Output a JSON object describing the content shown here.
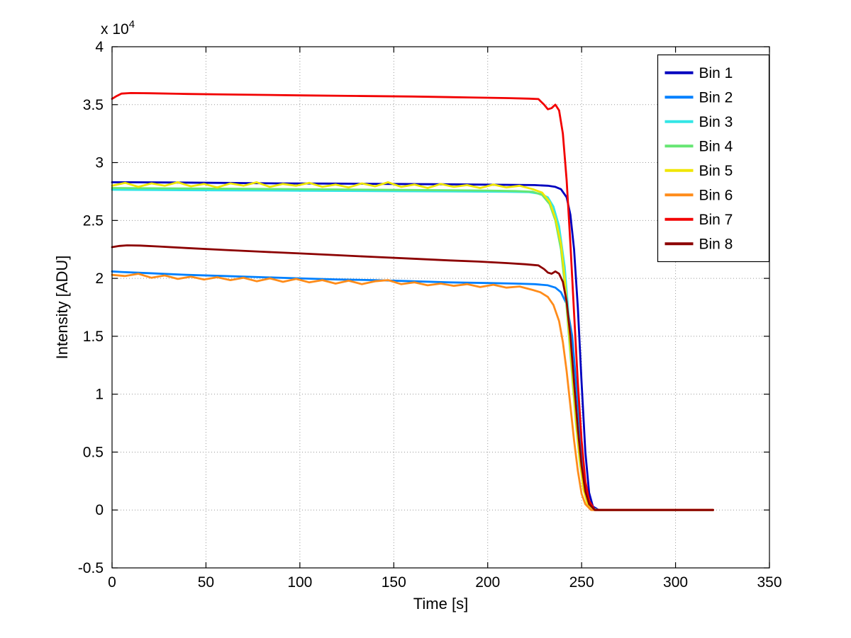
{
  "figure": {
    "background": "#ffffff"
  },
  "chart_data": {
    "type": "line",
    "title": "",
    "xlabel": "Time [s]",
    "ylabel": "Intensity [ADU]",
    "y_multiplier_label": "x 10^4",
    "xlim": [
      0,
      350
    ],
    "ylim": [
      -0.5,
      4
    ],
    "xticks": [
      0,
      50,
      100,
      150,
      200,
      250,
      300,
      350
    ],
    "yticks": [
      -0.5,
      0,
      0.5,
      1,
      1.5,
      2,
      2.5,
      3,
      3.5,
      4
    ],
    "grid": "dotted",
    "grid_color": "#999999",
    "axis_color": "#000000",
    "legend_position": "top-right",
    "legend_labels": [
      "Bin 1",
      "Bin 2",
      "Bin 3",
      "Bin 4",
      "Bin 5",
      "Bin 6",
      "Bin 7",
      "Bin 8"
    ],
    "series": [
      {
        "name": "Bin 1",
        "color": "#0000BF",
        "points": [
          [
            0,
            2.83
          ],
          [
            10,
            2.83
          ],
          [
            30,
            2.828
          ],
          [
            60,
            2.824
          ],
          [
            90,
            2.82
          ],
          [
            120,
            2.818
          ],
          [
            150,
            2.815
          ],
          [
            180,
            2.812
          ],
          [
            210,
            2.808
          ],
          [
            225,
            2.805
          ],
          [
            232,
            2.8
          ],
          [
            236,
            2.79
          ],
          [
            239,
            2.77
          ],
          [
            242,
            2.7
          ],
          [
            244,
            2.55
          ],
          [
            246,
            2.25
          ],
          [
            248,
            1.75
          ],
          [
            250,
            1.1
          ],
          [
            252,
            0.5
          ],
          [
            254,
            0.15
          ],
          [
            256,
            0.03
          ],
          [
            259,
            0
          ],
          [
            320,
            0
          ]
        ]
      },
      {
        "name": "Bin 2",
        "color": "#0080FF",
        "points": [
          [
            0,
            2.06
          ],
          [
            5,
            2.055
          ],
          [
            20,
            2.045
          ],
          [
            40,
            2.03
          ],
          [
            60,
            2.02
          ],
          [
            80,
            2.01
          ],
          [
            100,
            2.0
          ],
          [
            120,
            1.99
          ],
          [
            140,
            1.985
          ],
          [
            160,
            1.975
          ],
          [
            180,
            1.965
          ],
          [
            200,
            1.96
          ],
          [
            215,
            1.955
          ],
          [
            225,
            1.95
          ],
          [
            232,
            1.94
          ],
          [
            236,
            1.92
          ],
          [
            239,
            1.88
          ],
          [
            242,
            1.78
          ],
          [
            245,
            1.5
          ],
          [
            247,
            1.1
          ],
          [
            249,
            0.7
          ],
          [
            251,
            0.35
          ],
          [
            253,
            0.12
          ],
          [
            255,
            0.03
          ],
          [
            258,
            0
          ],
          [
            320,
            0
          ]
        ]
      },
      {
        "name": "Bin 3",
        "color": "#33E6E6",
        "points": [
          [
            0,
            2.765
          ],
          [
            30,
            2.762
          ],
          [
            60,
            2.76
          ],
          [
            100,
            2.757
          ],
          [
            140,
            2.754
          ],
          [
            180,
            2.75
          ],
          [
            210,
            2.747
          ],
          [
            222,
            2.744
          ],
          [
            228,
            2.73
          ],
          [
            232,
            2.7
          ],
          [
            235,
            2.62
          ],
          [
            238,
            2.45
          ],
          [
            241,
            2.1
          ],
          [
            243,
            1.7
          ],
          [
            245,
            1.25
          ],
          [
            247,
            0.8
          ],
          [
            249,
            0.45
          ],
          [
            251,
            0.2
          ],
          [
            253,
            0.07
          ],
          [
            256,
            0
          ],
          [
            320,
            0
          ]
        ]
      },
      {
        "name": "Bin 4",
        "color": "#66E673",
        "points": [
          [
            0,
            2.78
          ],
          [
            40,
            2.776
          ],
          [
            80,
            2.772
          ],
          [
            120,
            2.768
          ],
          [
            160,
            2.763
          ],
          [
            200,
            2.758
          ],
          [
            215,
            2.754
          ],
          [
            224,
            2.748
          ],
          [
            229,
            2.72
          ],
          [
            233,
            2.64
          ],
          [
            236,
            2.5
          ],
          [
            239,
            2.25
          ],
          [
            241,
            1.95
          ],
          [
            243,
            1.55
          ],
          [
            245,
            1.15
          ],
          [
            247,
            0.75
          ],
          [
            249,
            0.42
          ],
          [
            251,
            0.18
          ],
          [
            253,
            0.06
          ],
          [
            256,
            0.01
          ],
          [
            259,
            0
          ],
          [
            320,
            0
          ]
        ]
      },
      {
        "name": "Bin 5",
        "color": "#F0E600",
        "points": [
          [
            0,
            2.8
          ],
          [
            7,
            2.825
          ],
          [
            14,
            2.79
          ],
          [
            21,
            2.82
          ],
          [
            28,
            2.8
          ],
          [
            35,
            2.83
          ],
          [
            42,
            2.795
          ],
          [
            49,
            2.815
          ],
          [
            56,
            2.785
          ],
          [
            63,
            2.82
          ],
          [
            70,
            2.8
          ],
          [
            77,
            2.83
          ],
          [
            84,
            2.79
          ],
          [
            91,
            2.815
          ],
          [
            98,
            2.8
          ],
          [
            105,
            2.825
          ],
          [
            112,
            2.79
          ],
          [
            119,
            2.81
          ],
          [
            126,
            2.785
          ],
          [
            133,
            2.82
          ],
          [
            140,
            2.795
          ],
          [
            147,
            2.83
          ],
          [
            154,
            2.79
          ],
          [
            161,
            2.81
          ],
          [
            168,
            2.78
          ],
          [
            175,
            2.815
          ],
          [
            182,
            2.79
          ],
          [
            189,
            2.805
          ],
          [
            196,
            2.78
          ],
          [
            203,
            2.81
          ],
          [
            210,
            2.785
          ],
          [
            217,
            2.8
          ],
          [
            224,
            2.77
          ],
          [
            229,
            2.74
          ],
          [
            233,
            2.66
          ],
          [
            236,
            2.52
          ],
          [
            239,
            2.3
          ],
          [
            241,
            2.0
          ],
          [
            243,
            1.6
          ],
          [
            245,
            1.2
          ],
          [
            247,
            0.78
          ],
          [
            249,
            0.44
          ],
          [
            251,
            0.18
          ],
          [
            253,
            0.06
          ],
          [
            256,
            0
          ],
          [
            320,
            0
          ]
        ]
      },
      {
        "name": "Bin 6",
        "color": "#FF8C1A",
        "points": [
          [
            0,
            2.03
          ],
          [
            7,
            2.02
          ],
          [
            14,
            2.04
          ],
          [
            21,
            2.005
          ],
          [
            28,
            2.025
          ],
          [
            35,
            1.995
          ],
          [
            42,
            2.015
          ],
          [
            49,
            1.99
          ],
          [
            56,
            2.01
          ],
          [
            63,
            1.985
          ],
          [
            70,
            2.005
          ],
          [
            77,
            1.975
          ],
          [
            84,
            2.0
          ],
          [
            91,
            1.97
          ],
          [
            98,
            1.995
          ],
          [
            105,
            1.965
          ],
          [
            112,
            1.985
          ],
          [
            119,
            1.955
          ],
          [
            126,
            1.98
          ],
          [
            133,
            1.95
          ],
          [
            140,
            1.975
          ],
          [
            147,
            1.985
          ],
          [
            154,
            1.95
          ],
          [
            161,
            1.965
          ],
          [
            168,
            1.94
          ],
          [
            175,
            1.955
          ],
          [
            182,
            1.935
          ],
          [
            189,
            1.95
          ],
          [
            196,
            1.925
          ],
          [
            203,
            1.945
          ],
          [
            210,
            1.92
          ],
          [
            217,
            1.93
          ],
          [
            224,
            1.9
          ],
          [
            228,
            1.88
          ],
          [
            232,
            1.84
          ],
          [
            235,
            1.77
          ],
          [
            238,
            1.63
          ],
          [
            240,
            1.45
          ],
          [
            242,
            1.2
          ],
          [
            244,
            0.9
          ],
          [
            246,
            0.6
          ],
          [
            248,
            0.34
          ],
          [
            250,
            0.14
          ],
          [
            252,
            0.05
          ],
          [
            255,
            0
          ],
          [
            320,
            0
          ]
        ]
      },
      {
        "name": "Bin 7",
        "color": "#F20000",
        "points": [
          [
            0,
            3.55
          ],
          [
            2,
            3.57
          ],
          [
            5,
            3.595
          ],
          [
            10,
            3.6
          ],
          [
            20,
            3.598
          ],
          [
            40,
            3.592
          ],
          [
            60,
            3.588
          ],
          [
            80,
            3.584
          ],
          [
            100,
            3.58
          ],
          [
            130,
            3.575
          ],
          [
            160,
            3.57
          ],
          [
            190,
            3.562
          ],
          [
            210,
            3.557
          ],
          [
            222,
            3.552
          ],
          [
            227,
            3.548
          ],
          [
            230,
            3.5
          ],
          [
            232,
            3.46
          ],
          [
            234,
            3.47
          ],
          [
            236,
            3.5
          ],
          [
            238,
            3.45
          ],
          [
            240,
            3.25
          ],
          [
            242,
            2.85
          ],
          [
            244,
            2.3
          ],
          [
            246,
            1.7
          ],
          [
            248,
            1.1
          ],
          [
            250,
            0.6
          ],
          [
            252,
            0.25
          ],
          [
            254,
            0.08
          ],
          [
            257,
            0
          ],
          [
            320,
            0
          ]
        ]
      },
      {
        "name": "Bin 8",
        "color": "#8C0000",
        "points": [
          [
            0,
            2.27
          ],
          [
            4,
            2.28
          ],
          [
            8,
            2.285
          ],
          [
            15,
            2.283
          ],
          [
            25,
            2.275
          ],
          [
            40,
            2.262
          ],
          [
            60,
            2.245
          ],
          [
            80,
            2.23
          ],
          [
            100,
            2.215
          ],
          [
            120,
            2.2
          ],
          [
            140,
            2.185
          ],
          [
            160,
            2.17
          ],
          [
            180,
            2.155
          ],
          [
            195,
            2.145
          ],
          [
            210,
            2.132
          ],
          [
            220,
            2.122
          ],
          [
            227,
            2.112
          ],
          [
            230,
            2.08
          ],
          [
            232,
            2.05
          ],
          [
            234,
            2.04
          ],
          [
            236,
            2.06
          ],
          [
            238,
            2.04
          ],
          [
            240,
            1.97
          ],
          [
            242,
            1.8
          ],
          [
            244,
            1.5
          ],
          [
            246,
            1.1
          ],
          [
            248,
            0.7
          ],
          [
            250,
            0.38
          ],
          [
            252,
            0.16
          ],
          [
            254,
            0.05
          ],
          [
            257,
            0
          ],
          [
            320,
            0
          ]
        ]
      }
    ]
  }
}
